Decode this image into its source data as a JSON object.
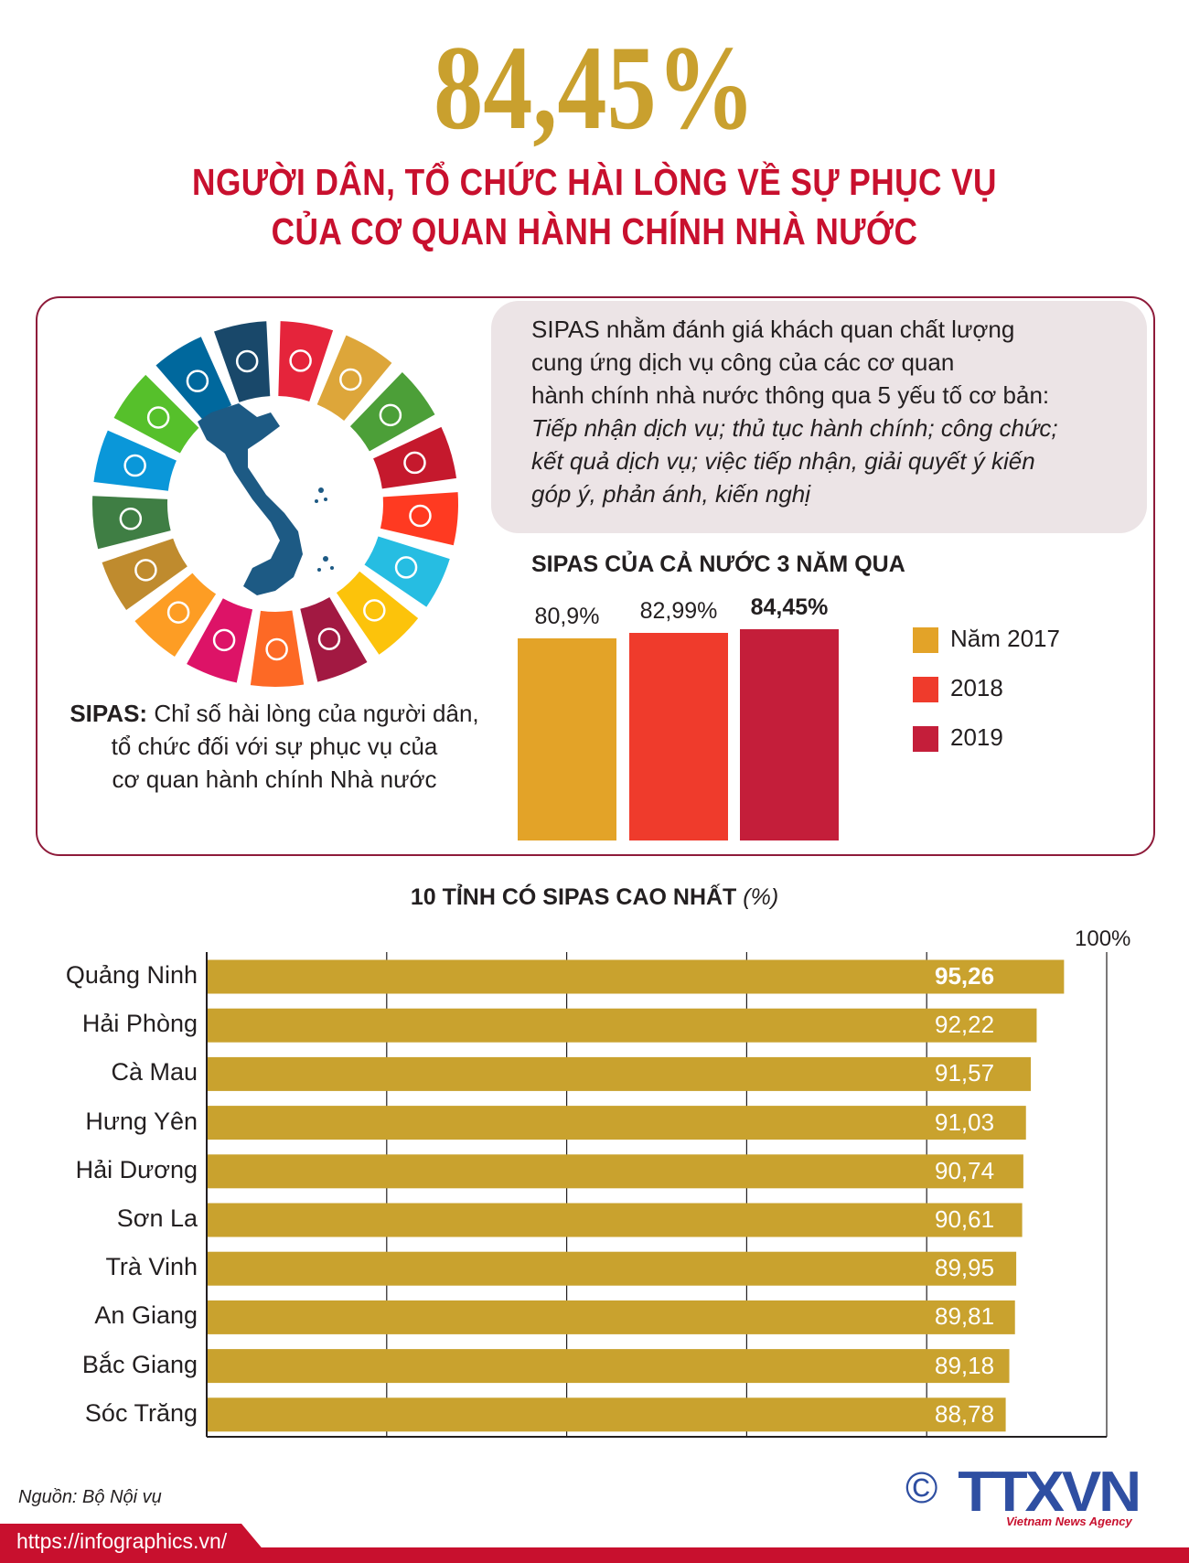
{
  "header": {
    "big_number": "84,45%",
    "title_line1": "NGƯỜI DÂN, TỔ CHỨC HÀI LÒNG VỀ SỰ PHỤC VỤ",
    "title_line2": "CỦA CƠ QUAN HÀNH CHÍNH NHÀ NƯỚC"
  },
  "info": {
    "lines": [
      "SIPAS nhằm đánh giá khách quan chất lượng",
      "cung ứng dịch vụ công của các cơ quan",
      "hành chính nhà nước thông qua 5 yếu tố cơ bản:"
    ],
    "italic_lines": [
      "Tiếp nhận dịch vụ; thủ tục hành chính; công chức;",
      "kết quả dịch vụ; việc tiếp nhận, giải quyết ý kiến",
      "góp ý, phản ánh, kiến nghị"
    ]
  },
  "caption": {
    "bold": "SIPAS:",
    "line1": " Chỉ số hài lòng của người dân,",
    "line2": "tổ chức đối với sự phục vụ của",
    "line3": "cơ quan hành chính Nhà nước"
  },
  "sdg_colors": [
    "#E5243B",
    "#DDA63A",
    "#4C9F38",
    "#C5192D",
    "#FF3A21",
    "#26BDE2",
    "#FCC30B",
    "#A21942",
    "#FD6925",
    "#DD1367",
    "#FD9D24",
    "#BF8B2E",
    "#3F7E44",
    "#0A97D9",
    "#56C02B",
    "#00689D",
    "#19486A"
  ],
  "chart_data": [
    {
      "type": "bar",
      "title": "SIPAS CỦA CẢ NƯỚC 3 NĂM QUA",
      "categories": [
        "Năm 2017",
        "2018",
        "2019"
      ],
      "values": [
        80.9,
        82.99,
        84.45
      ],
      "data_labels": [
        "80,9%",
        "82,99%",
        "84,45%"
      ],
      "colors": [
        "#e3a328",
        "#ef3b2c",
        "#c41e3a"
      ],
      "legend": "right",
      "ylim": [
        0,
        100
      ]
    },
    {
      "type": "bar",
      "orientation": "horizontal",
      "title": "10 TỈNH CÓ SIPAS CAO NHẤT",
      "unit": "(%)",
      "categories": [
        "Quảng Ninh",
        "Hải Phòng",
        "Cà Mau",
        "Hưng Yên",
        "Hải Dương",
        "Sơn La",
        "Trà Vinh",
        "An Giang",
        "Bắc Giang",
        "Sóc Trăng"
      ],
      "values": [
        95.26,
        92.22,
        91.57,
        91.03,
        90.74,
        90.61,
        89.95,
        89.81,
        89.18,
        88.78
      ],
      "data_labels": [
        "95,26",
        "92,22",
        "91,57",
        "91,03",
        "90,74",
        "90,61",
        "89,95",
        "89,81",
        "89,18",
        "88,78"
      ],
      "xlim": [
        0,
        100
      ],
      "gridlines": [
        20,
        40,
        60,
        80,
        100
      ],
      "max_label": "100%",
      "color": "#c9a22e",
      "grid": true
    }
  ],
  "footer": {
    "source": "Nguồn: Bộ Nội vụ",
    "url": "https://infographics.vn/",
    "logo": "TTXVN",
    "logo_sub": "Vietnam News Agency",
    "copyright": "©"
  }
}
